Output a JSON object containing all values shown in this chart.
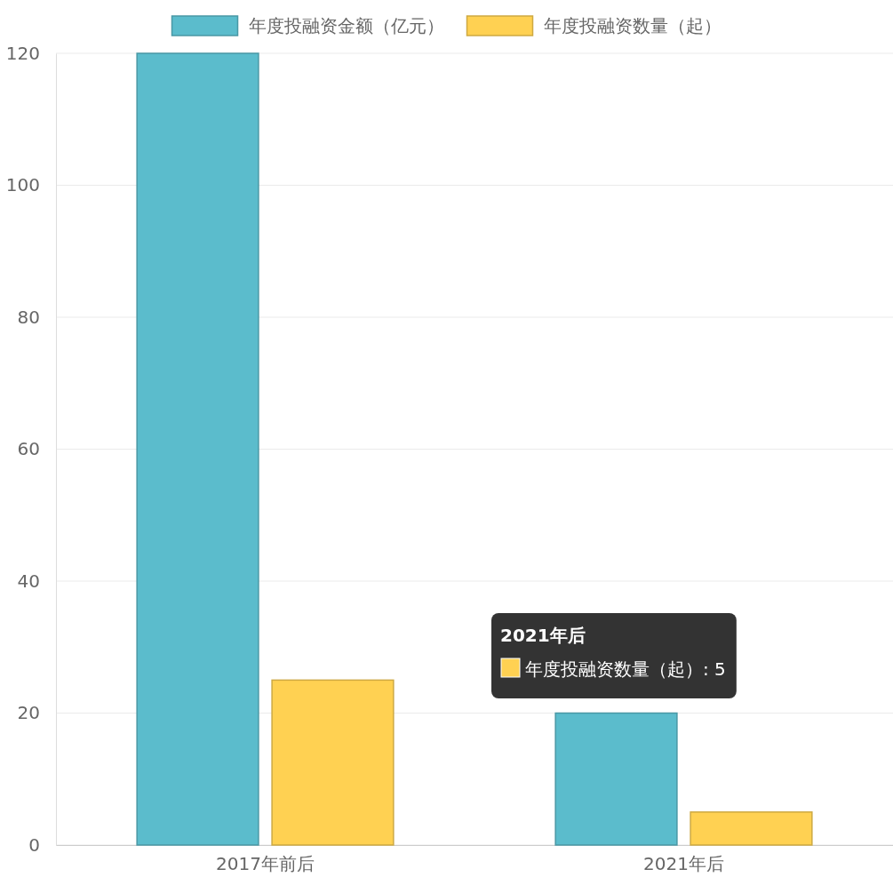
{
  "chart_data": {
    "type": "bar",
    "categories": [
      "2017年前后",
      "2021年后"
    ],
    "series": [
      {
        "name": "年度投融资金额（亿元）",
        "color": "#5bbccc",
        "values": [
          120,
          20
        ]
      },
      {
        "name": "年度投融资数量（起）",
        "color": "#ffd152",
        "values": [
          25,
          5
        ]
      }
    ],
    "ylim": [
      0,
      120
    ],
    "yticks": [
      0,
      20,
      40,
      60,
      80,
      100,
      120
    ],
    "grid": "y",
    "legend": "top",
    "annotations": [
      "2021年后",
      "年度投融资数量（起）: 5"
    ]
  }
}
